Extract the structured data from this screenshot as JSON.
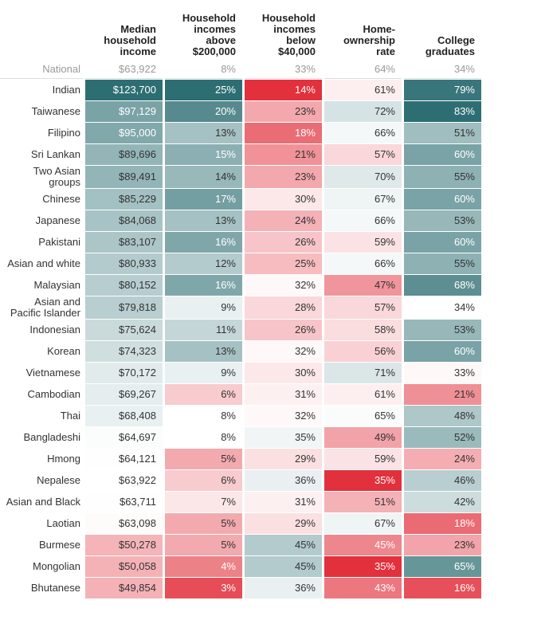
{
  "table": {
    "headers": [
      "",
      "Median household income",
      "Household incomes above $200,000",
      "Household incomes below $40,000",
      "Home-ownership rate",
      "College graduates"
    ],
    "national": [
      "National",
      "$63,922",
      "8%",
      "33%",
      "64%",
      "34%"
    ],
    "rows": [
      [
        "Indian",
        "$123,700",
        "25%",
        "14%",
        "61%",
        "79%"
      ],
      [
        "Taiwanese",
        "$97,129",
        "20%",
        "23%",
        "72%",
        "83%"
      ],
      [
        "Filipino",
        "$95,000",
        "13%",
        "18%",
        "66%",
        "51%"
      ],
      [
        "Sri Lankan",
        "$89,696",
        "15%",
        "21%",
        "57%",
        "60%"
      ],
      [
        "Two Asian groups",
        "$89,491",
        "14%",
        "23%",
        "70%",
        "55%"
      ],
      [
        "Chinese",
        "$85,229",
        "17%",
        "30%",
        "67%",
        "60%"
      ],
      [
        "Japanese",
        "$84,068",
        "13%",
        "24%",
        "66%",
        "53%"
      ],
      [
        "Pakistani",
        "$83,107",
        "16%",
        "26%",
        "59%",
        "60%"
      ],
      [
        "Asian and white",
        "$80,933",
        "12%",
        "25%",
        "66%",
        "55%"
      ],
      [
        "Malaysian",
        "$80,152",
        "16%",
        "32%",
        "47%",
        "68%"
      ],
      [
        "Asian and Pacific Islander",
        "$79,818",
        "9%",
        "28%",
        "57%",
        "34%"
      ],
      [
        "Indonesian",
        "$75,624",
        "11%",
        "26%",
        "58%",
        "53%"
      ],
      [
        "Korean",
        "$74,323",
        "13%",
        "32%",
        "56%",
        "60%"
      ],
      [
        "Vietnamese",
        "$70,172",
        "9%",
        "30%",
        "71%",
        "33%"
      ],
      [
        "Cambodian",
        "$69,267",
        "6%",
        "31%",
        "61%",
        "21%"
      ],
      [
        "Thai",
        "$68,408",
        "8%",
        "32%",
        "65%",
        "48%"
      ],
      [
        "Bangladeshi",
        "$64,697",
        "8%",
        "35%",
        "49%",
        "52%"
      ],
      [
        "Hmong",
        "$64,121",
        "5%",
        "29%",
        "59%",
        "24%"
      ],
      [
        "Nepalese",
        "$63,922",
        "6%",
        "36%",
        "35%",
        "46%"
      ],
      [
        "Asian and Black",
        "$63,711",
        "7%",
        "31%",
        "51%",
        "42%"
      ],
      [
        "Laotian",
        "$63,098",
        "5%",
        "29%",
        "67%",
        "18%"
      ],
      [
        "Burmese",
        "$50,278",
        "5%",
        "45%",
        "45%",
        "23%"
      ],
      [
        "Mongolian",
        "$50,058",
        "4%",
        "45%",
        "35%",
        "65%"
      ],
      [
        "Bhutanese",
        "$49,854",
        "3%",
        "36%",
        "43%",
        "16%"
      ]
    ]
  }
}
